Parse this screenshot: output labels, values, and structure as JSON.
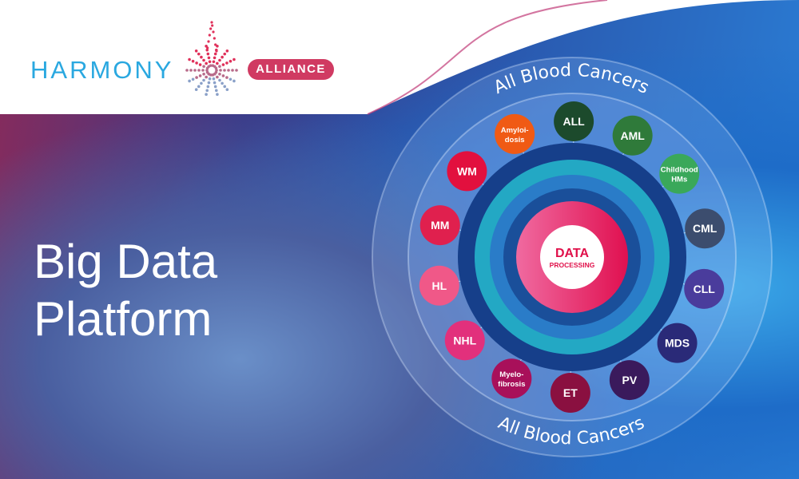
{
  "logo": {
    "name": "HARMONY",
    "badge": "ALLIANCE",
    "badge_color": "#d03a62",
    "name_color": "#2aa8e0"
  },
  "title": {
    "line1": "Big Data",
    "line2": "Platform"
  },
  "diagram": {
    "ring_label_top": "All Blood Cancers",
    "ring_label_bottom": "All Blood Cancers",
    "center": {
      "line1": "DATA",
      "line2": "PROCESSING"
    },
    "nodes": [
      {
        "label": [
          "Amyloi-",
          "dosis"
        ],
        "color": "#f05a14"
      },
      {
        "label": [
          "ALL"
        ],
        "color": "#1c4a2c"
      },
      {
        "label": [
          "AML"
        ],
        "color": "#2f7a3a"
      },
      {
        "label": [
          "Childhood",
          "HMs"
        ],
        "color": "#3aa85a"
      },
      {
        "label": [
          "CML"
        ],
        "color": "#3c4d6e"
      },
      {
        "label": [
          "CLL"
        ],
        "color": "#4a3c9c"
      },
      {
        "label": [
          "MDS"
        ],
        "color": "#2a2a78"
      },
      {
        "label": [
          "PV"
        ],
        "color": "#3a1a5c"
      },
      {
        "label": [
          "ET"
        ],
        "color": "#8a1040"
      },
      {
        "label": [
          "Myelo-",
          "fibrosis"
        ],
        "color": "#a8105a"
      },
      {
        "label": [
          "NHL"
        ],
        "color": "#e2307c"
      },
      {
        "label": [
          "HL"
        ],
        "color": "#f05888"
      },
      {
        "label": [
          "MM"
        ],
        "color": "#e0204e"
      },
      {
        "label": [
          "WM"
        ],
        "color": "#e2103e"
      }
    ]
  }
}
